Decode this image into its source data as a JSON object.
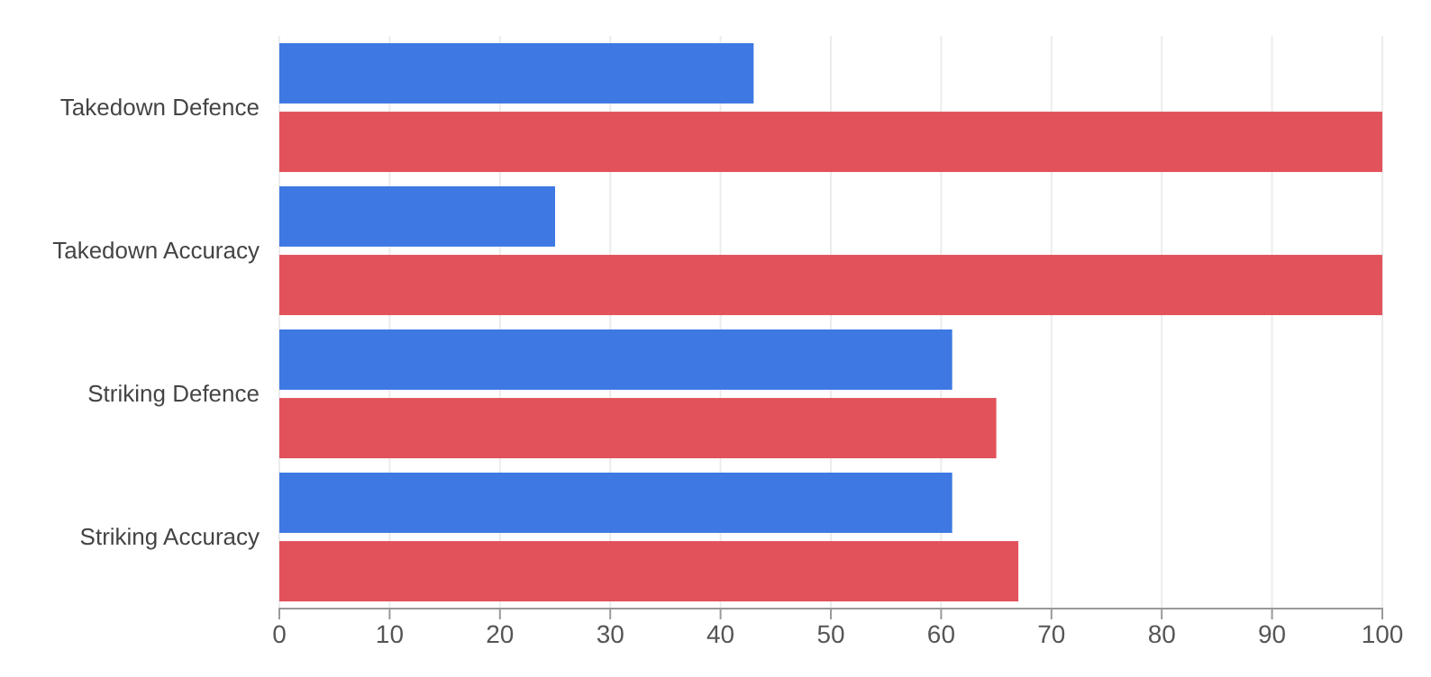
{
  "chart_data": {
    "type": "bar",
    "orientation": "horizontal",
    "categories": [
      "Takedown Defence",
      "Takedown Accuracy",
      "Striking Defence",
      "Striking Accuracy"
    ],
    "series": [
      {
        "color": "#3d78e3",
        "values": [
          43,
          25,
          61,
          61
        ]
      },
      {
        "color": "#e2525a",
        "values": [
          100,
          100,
          65,
          67
        ]
      }
    ],
    "xlim": [
      0,
      100
    ],
    "xticks": [
      0,
      10,
      20,
      30,
      40,
      50,
      60,
      70,
      80,
      90,
      100
    ],
    "grid": "x"
  }
}
